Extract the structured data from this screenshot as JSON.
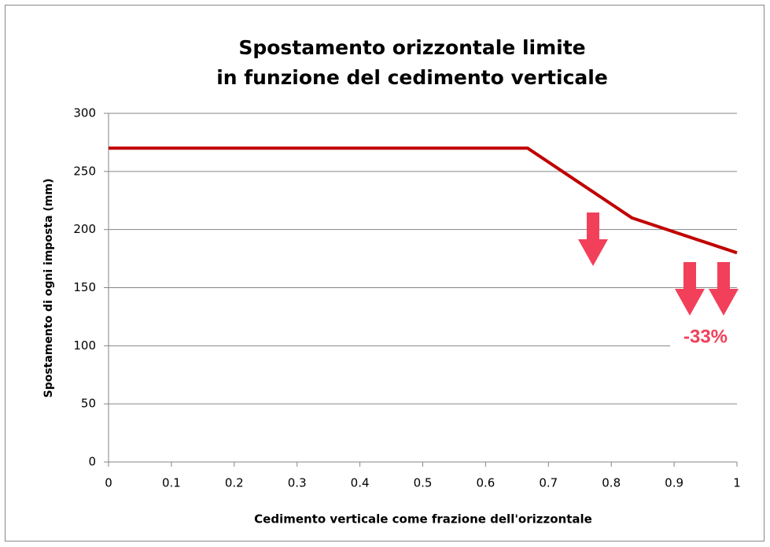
{
  "chart_data": {
    "type": "line",
    "title": [
      "Spostamento orizzontale limite",
      "in funzione del cedimento verticale"
    ],
    "xlabel": "Cedimento verticale come frazione dell'orizzontale",
    "ylabel": "Spostamento di ogni imposta (mm)",
    "x": [
      0,
      0.667,
      0.833,
      1
    ],
    "values": [
      270,
      270,
      210,
      180
    ],
    "color": "#c00000",
    "xlim": [
      0,
      1
    ],
    "xticks": [
      0,
      0.1,
      0.2,
      0.3,
      0.4,
      0.5,
      0.6,
      0.7,
      0.8,
      0.9,
      1
    ],
    "ylim": [
      0,
      300
    ],
    "yticks": [
      0,
      50,
      100,
      150,
      200,
      250,
      300
    ],
    "grid": true,
    "annotation": "-33%"
  }
}
